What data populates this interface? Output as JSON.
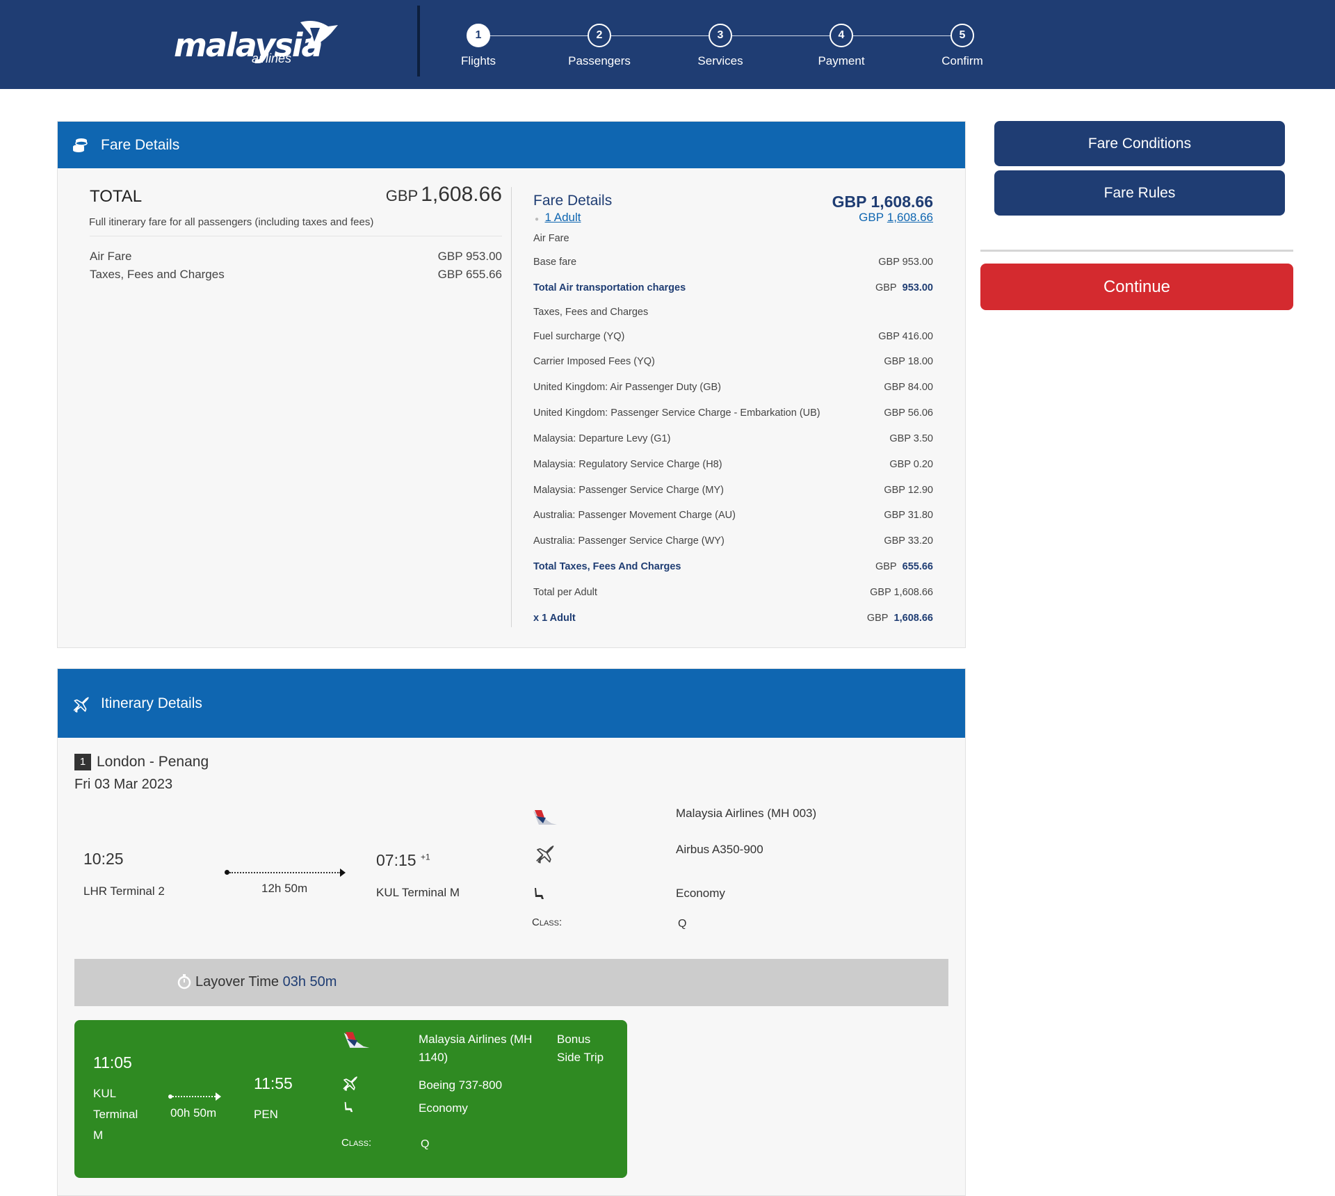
{
  "brand": {
    "logo_text": "malaysia",
    "logo_sub": "airlines"
  },
  "steps": [
    {
      "num": "1",
      "label": "Flights"
    },
    {
      "num": "2",
      "label": "Passengers"
    },
    {
      "num": "3",
      "label": "Services"
    },
    {
      "num": "4",
      "label": "Payment"
    },
    {
      "num": "5",
      "label": "Confirm"
    }
  ],
  "active_step": "1",
  "fare": {
    "header": "Fare Details",
    "total_label": "TOTAL",
    "total_currency": "GBP",
    "total_amount": "1,608.66",
    "total_note": "Full itinerary fare for all passengers (including taxes and fees)",
    "summary": [
      {
        "label": "Air Fare",
        "value": "GBP  953.00"
      },
      {
        "label": "Taxes, Fees and Charges",
        "value": "GBP  655.66"
      }
    ],
    "detail": {
      "title": "Fare Details",
      "grand_total": "GBP 1,608.66",
      "pax_link": "1 Adult",
      "pax_currency": "GBP",
      "pax_amount": "1,608.66",
      "rows": [
        {
          "label": "Air Fare",
          "value": ""
        },
        {
          "label": "Base fare",
          "value": "GBP  953.00"
        },
        {
          "label": "Total Air transportation charges",
          "cur": "GBP",
          "value": "953.00",
          "strong": true
        },
        {
          "label": "Taxes, Fees and Charges",
          "value": ""
        },
        {
          "label": "Fuel surcharge (YQ)",
          "value": "GBP  416.00"
        },
        {
          "label": "Carrier Imposed Fees (YQ)",
          "value": "GBP  18.00"
        },
        {
          "label": "United Kingdom: Air Passenger Duty (GB)",
          "value": "GBP  84.00"
        },
        {
          "label": "United Kingdom: Passenger Service Charge - Embarkation (UB)",
          "value": "GBP  56.06"
        },
        {
          "label": "Malaysia: Departure Levy (G1)",
          "value": "GBP  3.50"
        },
        {
          "label": "Malaysia: Regulatory Service Charge (H8)",
          "value": "GBP  0.20"
        },
        {
          "label": "Malaysia: Passenger Service Charge (MY)",
          "value": "GBP  12.90"
        },
        {
          "label": "Australia: Passenger Movement Charge (AU)",
          "value": "GBP  31.80"
        },
        {
          "label": "Australia: Passenger Service Charge (WY)",
          "value": "GBP  33.20"
        },
        {
          "label": "Total Taxes, Fees And Charges",
          "cur": "GBP",
          "value": "655.66",
          "strong": true
        },
        {
          "label": "Total per Adult",
          "value": "GBP  1,608.66"
        },
        {
          "label": "x 1 Adult",
          "cur": "GBP",
          "value": "1,608.66",
          "strong": true
        }
      ]
    }
  },
  "itinerary": {
    "header": "Itinerary Details",
    "segment_num": "1",
    "route": "London - Penang",
    "date": "Fri 03 Mar 2023",
    "flight1": {
      "depart_time": "10:25",
      "depart_place": "LHR Terminal 2",
      "duration": "12h 50m",
      "arrive_time": "07:15",
      "day_offset": "+1",
      "arrive_place": "KUL Terminal M",
      "airline": "Malaysia Airlines (MH 003)",
      "aircraft": "Airbus A350-900",
      "cabin": "Economy",
      "class_label": "Class:",
      "class_value": "Q"
    },
    "layover_label": "Layover Time",
    "layover_value": "03h 50m",
    "flight2": {
      "depart_time": "11:05",
      "depart_place_1": "KUL",
      "depart_place_2": "Terminal",
      "depart_place_3": "M",
      "duration": "00h 50m",
      "arrive_time": "11:55",
      "arrive_place": "PEN",
      "airline_1": "Malaysia Airlines (MH",
      "airline_2": "1140)",
      "aircraft": "Boeing 737-800",
      "cabin": "Economy",
      "class_label": "Class:",
      "class_value": "Q",
      "tag_1": "Bonus",
      "tag_2": "Side Trip"
    }
  },
  "side": {
    "fare_conditions": "Fare Conditions",
    "fare_rules": "Fare Rules",
    "continue": "Continue"
  },
  "colors": {
    "navy": "#1f3d73",
    "blue": "#0f66b1",
    "red": "#d42a2f",
    "green": "#2f8a22"
  }
}
